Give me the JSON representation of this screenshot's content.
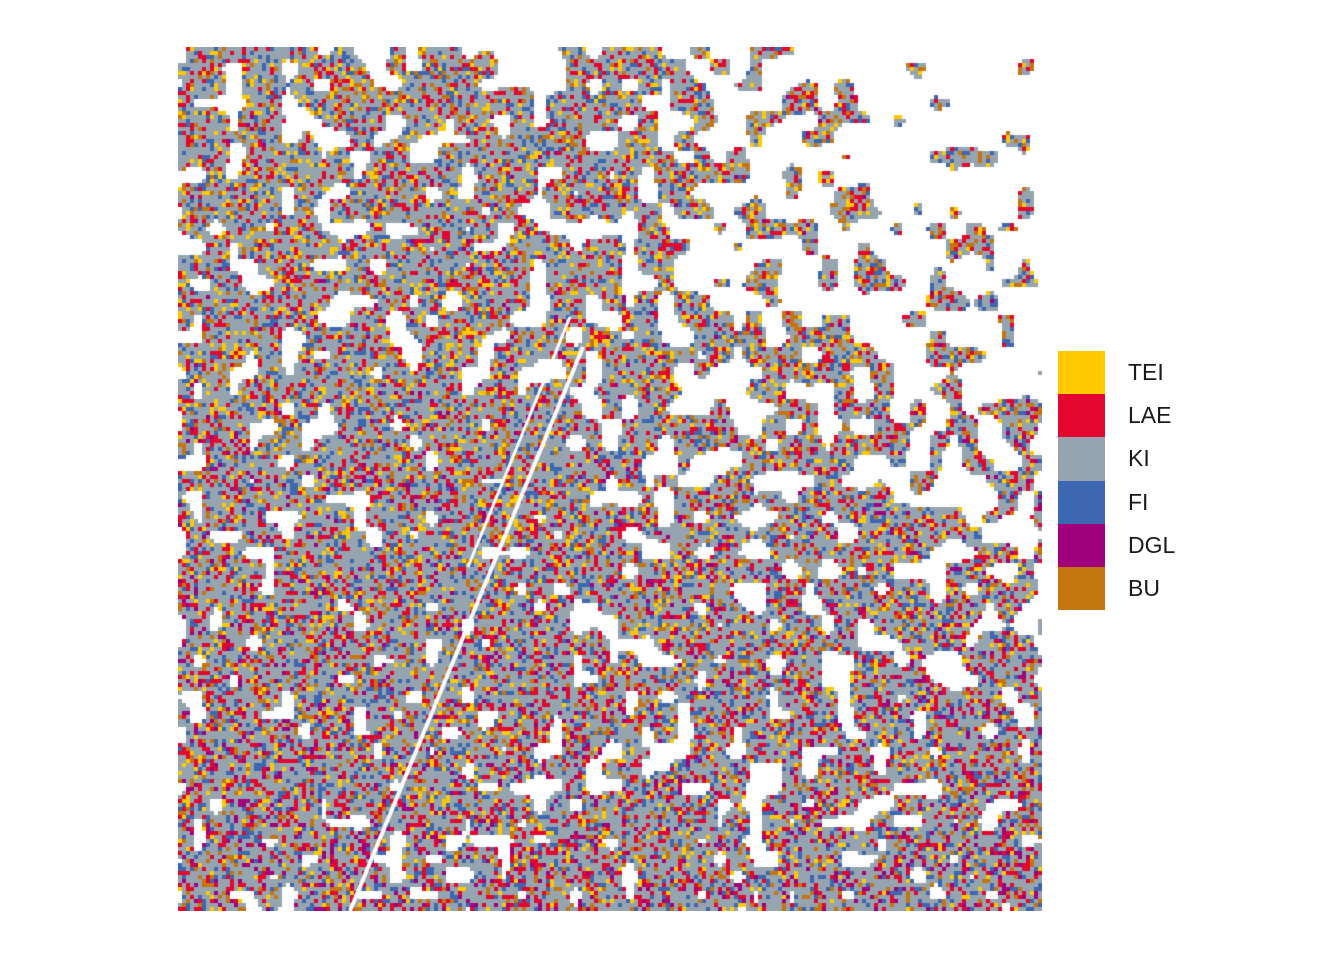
{
  "legend": {
    "items": [
      {
        "label": "TEI",
        "color": "#FFC900"
      },
      {
        "label": "LAE",
        "color": "#E3062E"
      },
      {
        "label": "KI",
        "color": "#95A4AE"
      },
      {
        "label": "FI",
        "color": "#3E67B1"
      },
      {
        "label": "DGL",
        "color": "#A1007C"
      },
      {
        "label": "BU",
        "color": "#C47510"
      }
    ]
  },
  "map": {
    "background_color": "#FFFFFF",
    "dominant_class": "KI"
  }
}
